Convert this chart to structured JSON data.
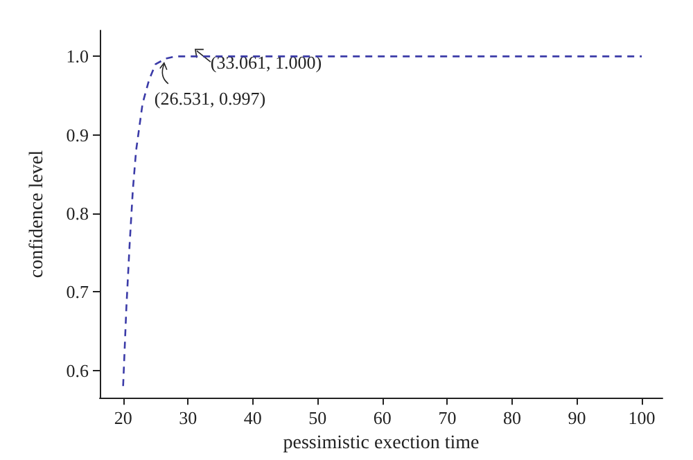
{
  "chart_data": {
    "type": "line",
    "xlabel": "pessimistic exection time",
    "ylabel": "confidence level",
    "x": [
      20,
      20.5,
      21,
      21.5,
      22,
      23,
      24,
      25,
      26.531,
      28,
      33.061,
      100
    ],
    "series": [
      {
        "color": "#3b3ba8",
        "values": [
          0.58,
          0.68,
          0.76,
          0.83,
          0.88,
          0.94,
          0.97,
          0.99,
          0.997,
          1.0,
          1.0,
          1.0
        ]
      }
    ],
    "xlim": [
      16.4,
      103.2
    ],
    "ylim": [
      0.565,
      1.033
    ],
    "xticks": [
      20,
      30,
      40,
      50,
      60,
      70,
      80,
      90,
      100
    ],
    "yticks": [
      0.6,
      0.7,
      0.8,
      0.9,
      {
        "value": 1,
        "label": "1.0"
      }
    ],
    "annotations": [
      {
        "text": "(26.531, 0.997)",
        "x": 26.531,
        "y": 0.997
      },
      {
        "text": "(33.061, 1.000)",
        "x": 33.061,
        "y": 1.0
      }
    ],
    "grid": false,
    "marker": "none",
    "line_style": "dashed"
  }
}
